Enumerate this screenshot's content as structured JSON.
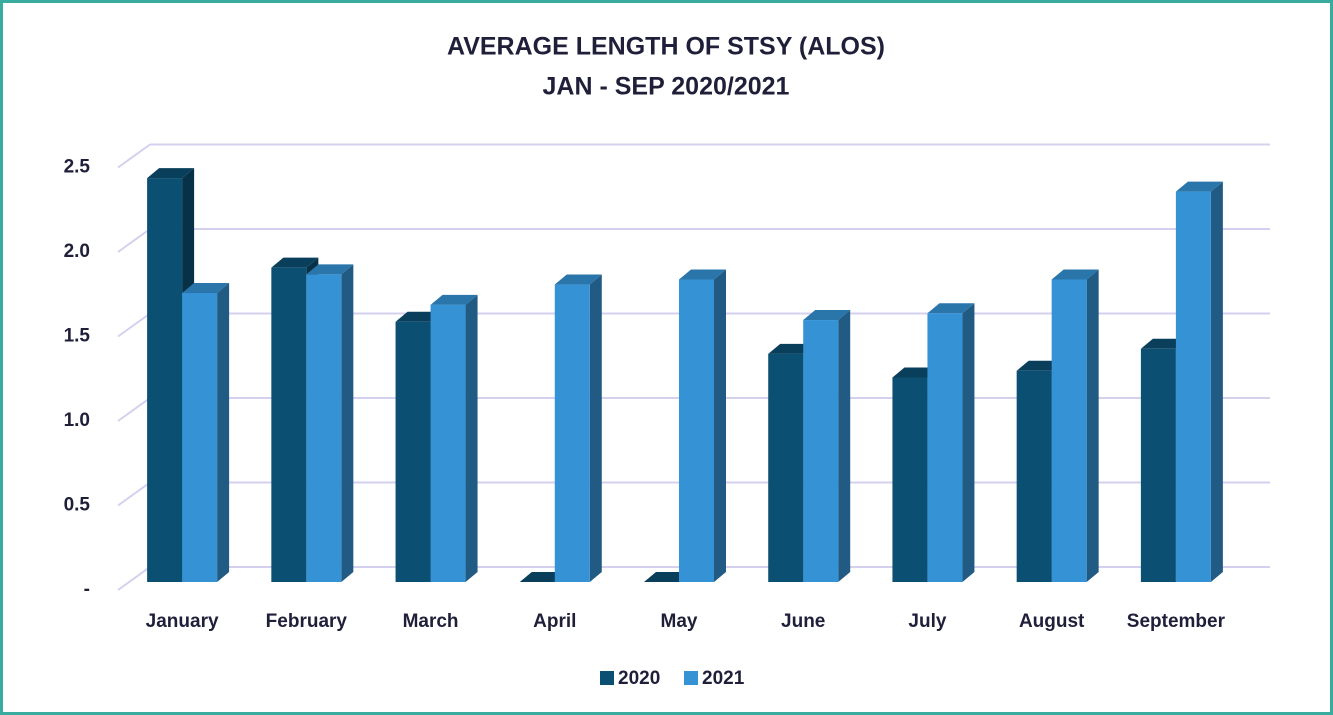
{
  "chart_data": {
    "type": "bar",
    "title": "AVERAGE LENGTH OF STSY (ALOS)",
    "subtitle": "JAN - SEP 2020/2021",
    "categories": [
      "January",
      "February",
      "March",
      "April",
      "May",
      "June",
      "July",
      "August",
      "September"
    ],
    "series": [
      {
        "name": "2020",
        "color": "#0b4f72",
        "values": [
          2.39,
          1.86,
          1.54,
          0,
          0,
          1.35,
          1.21,
          1.25,
          1.38
        ]
      },
      {
        "name": "2021",
        "color": "#3592d4",
        "values": [
          1.71,
          1.82,
          1.64,
          1.76,
          1.79,
          1.55,
          1.59,
          1.79,
          2.31
        ]
      }
    ],
    "ylim": [
      0,
      2.5
    ],
    "yticks": [
      {
        "value": 0,
        "label": "-"
      },
      0.5,
      {
        "value": 1,
        "label": "1.0"
      },
      1.5,
      {
        "value": 2,
        "label": "2.0"
      },
      2.5
    ],
    "grid": true,
    "legend": "bottom"
  }
}
